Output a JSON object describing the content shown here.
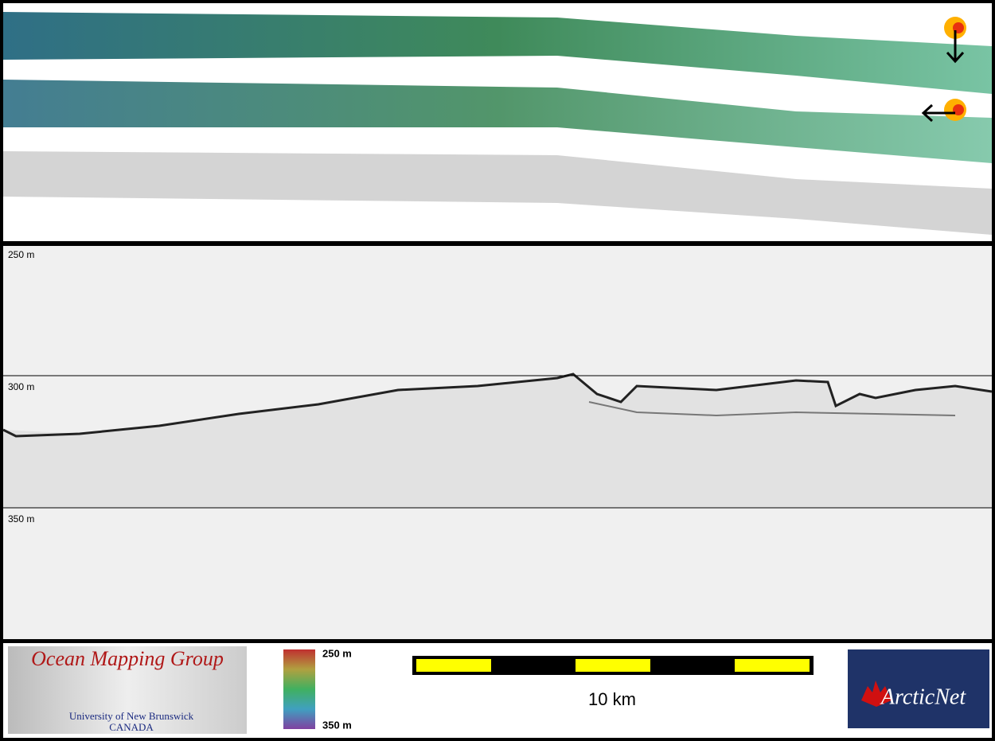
{
  "profile": {
    "depth_labels": [
      "250 m",
      "300 m",
      "350 m"
    ]
  },
  "footer": {
    "logo_left": {
      "title": "Ocean Mapping Group",
      "line1": "University of New Brunswick",
      "line2": "CANADA"
    },
    "colorbar": {
      "top": "250 m",
      "bottom": "350 m"
    },
    "scale_bar": {
      "label": "10 km"
    },
    "logo_right": {
      "title": "ArcticNet"
    }
  }
}
